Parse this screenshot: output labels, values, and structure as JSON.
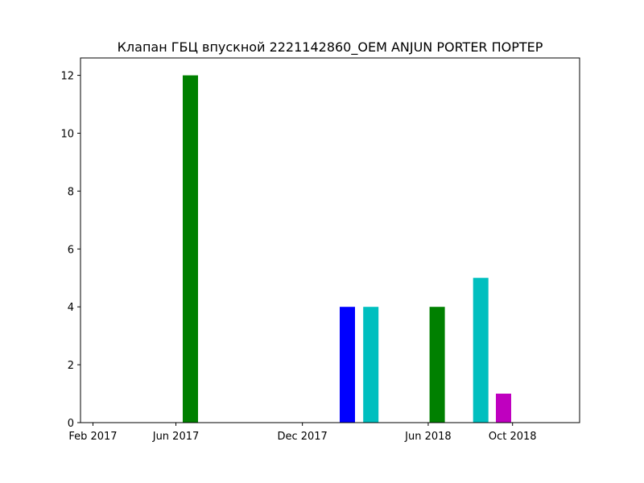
{
  "chart_data": {
    "type": "bar",
    "title": "Клапан ГБЦ впускной 2221142860_OEM ANJUN PORTER ПОРТЕР",
    "xlabel": "",
    "ylabel": "",
    "x_axis": {
      "type": "date",
      "range": [
        "2017-01-14",
        "2019-01-06"
      ],
      "ticks": [
        {
          "date": "2017-02-01",
          "label": "Feb 2017"
        },
        {
          "date": "2017-06-01",
          "label": "Jun 2017"
        },
        {
          "date": "2017-12-01",
          "label": "Dec 2017"
        },
        {
          "date": "2018-06-01",
          "label": "Jun 2018"
        },
        {
          "date": "2018-10-01",
          "label": "Oct 2018"
        }
      ]
    },
    "y_axis": {
      "range": [
        0,
        12.6
      ],
      "ticks": [
        0,
        2,
        4,
        6,
        8,
        10,
        12
      ]
    },
    "grid": false,
    "legend": "none",
    "bars": [
      {
        "date": "2017-06-22",
        "value": 12,
        "color": "#008000"
      },
      {
        "date": "2018-02-04",
        "value": 4,
        "color": "#0000ff"
      },
      {
        "date": "2018-03-10",
        "value": 4,
        "color": "#00bfbf"
      },
      {
        "date": "2018-06-14",
        "value": 4,
        "color": "#008000"
      },
      {
        "date": "2018-08-16",
        "value": 5,
        "color": "#00bfbf"
      },
      {
        "date": "2018-09-18",
        "value": 1,
        "color": "#bf00bf"
      }
    ]
  }
}
